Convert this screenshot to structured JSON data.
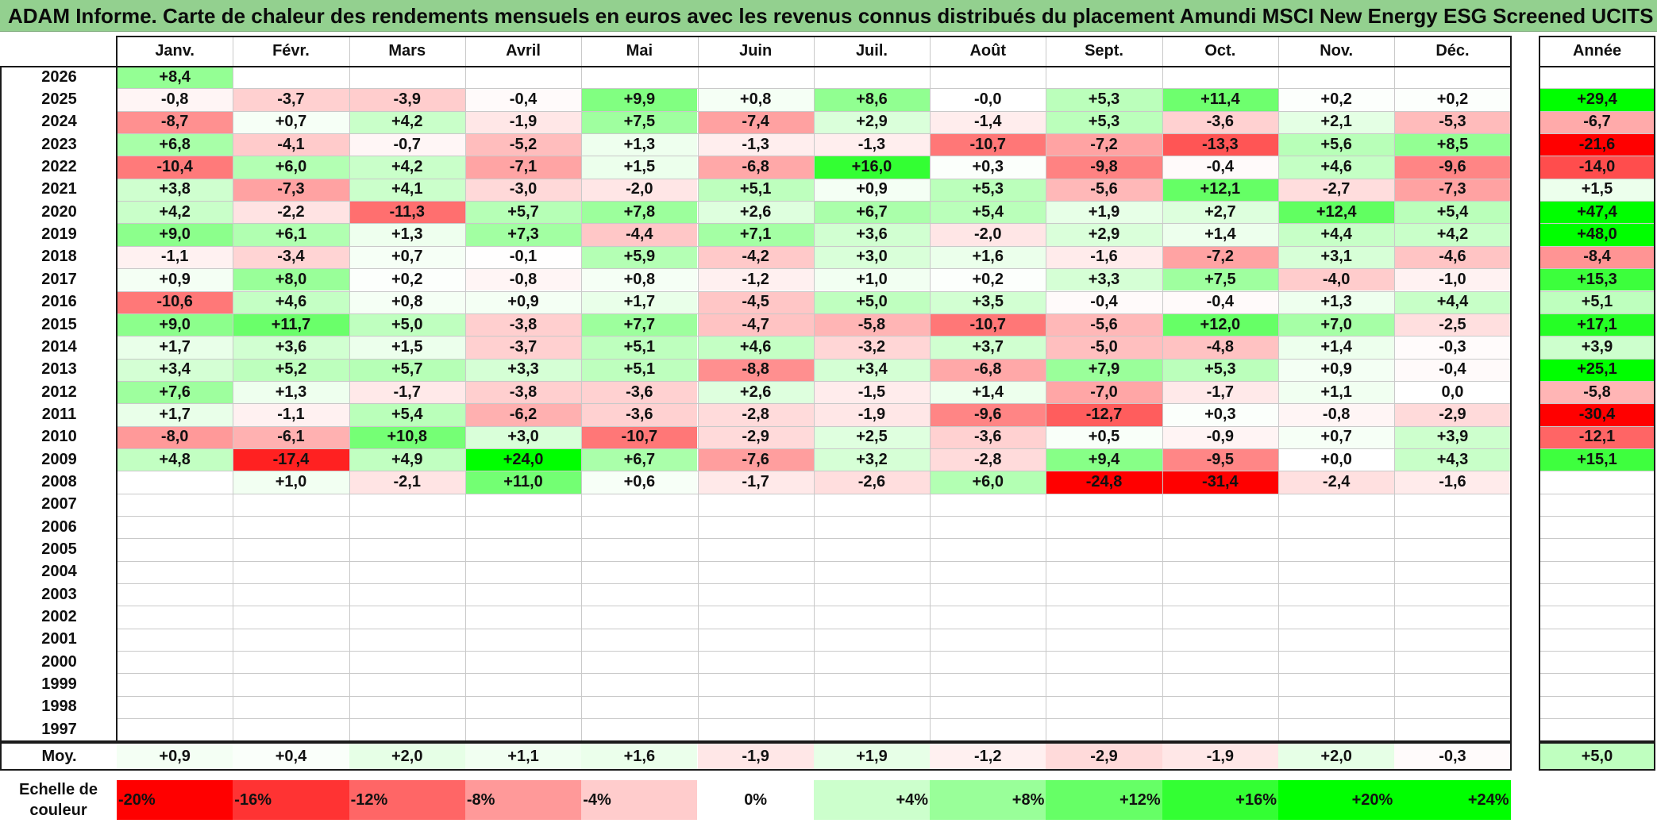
{
  "title": "ADAM Informe. Carte de chaleur des rendements mensuels en euros avec les revenus connus distribués du placement Amundi MSCI New Energy ESG Screened UCITS ETF Di",
  "chart_data": {
    "type": "heatmap",
    "columns": [
      "Janv.",
      "Févr.",
      "Mars",
      "Avril",
      "Mai",
      "Juin",
      "Juil.",
      "Août",
      "Sept.",
      "Oct.",
      "Nov.",
      "Déc."
    ],
    "year_header": "Année",
    "rows": [
      {
        "year": "2026",
        "months": [
          "+8,4",
          "",
          "",
          "",
          "",
          "",
          "",
          "",
          "",
          "",
          "",
          ""
        ],
        "annual": ""
      },
      {
        "year": "2025",
        "months": [
          "-0,8",
          "-3,7",
          "-3,9",
          "-0,4",
          "+9,9",
          "+0,8",
          "+8,6",
          "-0,0",
          "+5,3",
          "+11,4",
          "+0,2",
          "+0,2"
        ],
        "annual": "+29,4"
      },
      {
        "year": "2024",
        "months": [
          "-8,7",
          "+0,7",
          "+4,2",
          "-1,9",
          "+7,5",
          "-7,4",
          "+2,9",
          "-1,4",
          "+5,3",
          "-3,6",
          "+2,1",
          "-5,3"
        ],
        "annual": "-6,7"
      },
      {
        "year": "2023",
        "months": [
          "+6,8",
          "-4,1",
          "-0,7",
          "-5,2",
          "+1,3",
          "-1,3",
          "-1,3",
          "-10,7",
          "-7,2",
          "-13,3",
          "+5,6",
          "+8,5"
        ],
        "annual": "-21,6"
      },
      {
        "year": "2022",
        "months": [
          "-10,4",
          "+6,0",
          "+4,2",
          "-7,1",
          "+1,5",
          "-6,8",
          "+16,0",
          "+0,3",
          "-9,8",
          "-0,4",
          "+4,6",
          "-9,6"
        ],
        "annual": "-14,0"
      },
      {
        "year": "2021",
        "months": [
          "+3,8",
          "-7,3",
          "+4,1",
          "-3,0",
          "-2,0",
          "+5,1",
          "+0,9",
          "+5,3",
          "-5,6",
          "+12,1",
          "-2,7",
          "-7,3"
        ],
        "annual": "+1,5"
      },
      {
        "year": "2020",
        "months": [
          "+4,2",
          "-2,2",
          "-11,3",
          "+5,7",
          "+7,8",
          "+2,6",
          "+6,7",
          "+5,4",
          "+1,9",
          "+2,7",
          "+12,4",
          "+5,4"
        ],
        "annual": "+47,4"
      },
      {
        "year": "2019",
        "months": [
          "+9,0",
          "+6,1",
          "+1,3",
          "+7,3",
          "-4,4",
          "+7,1",
          "+3,6",
          "-2,0",
          "+2,9",
          "+1,4",
          "+4,4",
          "+4,2"
        ],
        "annual": "+48,0"
      },
      {
        "year": "2018",
        "months": [
          "-1,1",
          "-3,4",
          "+0,7",
          "-0,1",
          "+5,9",
          "-4,2",
          "+3,0",
          "+1,6",
          "-1,6",
          "-7,2",
          "+3,1",
          "-4,6"
        ],
        "annual": "-8,4"
      },
      {
        "year": "2017",
        "months": [
          "+0,9",
          "+8,0",
          "+0,2",
          "-0,8",
          "+0,8",
          "-1,2",
          "+1,0",
          "+0,2",
          "+3,3",
          "+7,5",
          "-4,0",
          "-1,0"
        ],
        "annual": "+15,3"
      },
      {
        "year": "2016",
        "months": [
          "-10,6",
          "+4,6",
          "+0,8",
          "+0,9",
          "+1,7",
          "-4,5",
          "+5,0",
          "+3,5",
          "-0,4",
          "-0,4",
          "+1,3",
          "+4,4"
        ],
        "annual": "+5,1"
      },
      {
        "year": "2015",
        "months": [
          "+9,0",
          "+11,7",
          "+5,0",
          "-3,8",
          "+7,7",
          "-4,7",
          "-5,8",
          "-10,7",
          "-5,6",
          "+12,0",
          "+7,0",
          "-2,5"
        ],
        "annual": "+17,1"
      },
      {
        "year": "2014",
        "months": [
          "+1,7",
          "+3,6",
          "+1,5",
          "-3,7",
          "+5,1",
          "+4,6",
          "-3,2",
          "+3,7",
          "-5,0",
          "-4,8",
          "+1,4",
          "-0,3"
        ],
        "annual": "+3,9"
      },
      {
        "year": "2013",
        "months": [
          "+3,4",
          "+5,2",
          "+5,7",
          "+3,3",
          "+5,1",
          "-8,8",
          "+3,4",
          "-6,8",
          "+7,9",
          "+5,3",
          "+0,9",
          "-0,4"
        ],
        "annual": "+25,1"
      },
      {
        "year": "2012",
        "months": [
          "+7,6",
          "+1,3",
          "-1,7",
          "-3,8",
          "-3,6",
          "+2,6",
          "-1,5",
          "+1,4",
          "-7,0",
          "-1,7",
          "+1,1",
          "0,0"
        ],
        "annual": "-5,8"
      },
      {
        "year": "2011",
        "months": [
          "+1,7",
          "-1,1",
          "+5,4",
          "-6,2",
          "-3,6",
          "-2,8",
          "-1,9",
          "-9,6",
          "-12,7",
          "+0,3",
          "-0,8",
          "-2,9"
        ],
        "annual": "-30,4"
      },
      {
        "year": "2010",
        "months": [
          "-8,0",
          "-6,1",
          "+10,8",
          "+3,0",
          "-10,7",
          "-2,9",
          "+2,5",
          "-3,6",
          "+0,5",
          "-0,9",
          "+0,7",
          "+3,9"
        ],
        "annual": "-12,1"
      },
      {
        "year": "2009",
        "months": [
          "+4,8",
          "-17,4",
          "+4,9",
          "+24,0",
          "+6,7",
          "-7,6",
          "+3,2",
          "-2,8",
          "+9,4",
          "-9,5",
          "+0,0",
          "+4,3"
        ],
        "annual": "+15,1"
      },
      {
        "year": "2008",
        "months": [
          "",
          "+1,0",
          "-2,1",
          "+11,0",
          "+0,6",
          "-1,7",
          "-2,6",
          "+6,0",
          "-24,8",
          "-31,4",
          "-2,4",
          "-1,6"
        ],
        "annual": ""
      },
      {
        "year": "2007",
        "months": [
          "",
          "",
          "",
          "",
          "",
          "",
          "",
          "",
          "",
          "",
          "",
          ""
        ],
        "annual": ""
      },
      {
        "year": "2006",
        "months": [
          "",
          "",
          "",
          "",
          "",
          "",
          "",
          "",
          "",
          "",
          "",
          ""
        ],
        "annual": ""
      },
      {
        "year": "2005",
        "months": [
          "",
          "",
          "",
          "",
          "",
          "",
          "",
          "",
          "",
          "",
          "",
          ""
        ],
        "annual": ""
      },
      {
        "year": "2004",
        "months": [
          "",
          "",
          "",
          "",
          "",
          "",
          "",
          "",
          "",
          "",
          "",
          ""
        ],
        "annual": ""
      },
      {
        "year": "2003",
        "months": [
          "",
          "",
          "",
          "",
          "",
          "",
          "",
          "",
          "",
          "",
          "",
          ""
        ],
        "annual": ""
      },
      {
        "year": "2002",
        "months": [
          "",
          "",
          "",
          "",
          "",
          "",
          "",
          "",
          "",
          "",
          "",
          ""
        ],
        "annual": ""
      },
      {
        "year": "2001",
        "months": [
          "",
          "",
          "",
          "",
          "",
          "",
          "",
          "",
          "",
          "",
          "",
          ""
        ],
        "annual": ""
      },
      {
        "year": "2000",
        "months": [
          "",
          "",
          "",
          "",
          "",
          "",
          "",
          "",
          "",
          "",
          "",
          ""
        ],
        "annual": ""
      },
      {
        "year": "1999",
        "months": [
          "",
          "",
          "",
          "",
          "",
          "",
          "",
          "",
          "",
          "",
          "",
          ""
        ],
        "annual": ""
      },
      {
        "year": "1998",
        "months": [
          "",
          "",
          "",
          "",
          "",
          "",
          "",
          "",
          "",
          "",
          "",
          ""
        ],
        "annual": ""
      },
      {
        "year": "1997",
        "months": [
          "",
          "",
          "",
          "",
          "",
          "",
          "",
          "",
          "",
          "",
          "",
          ""
        ],
        "annual": ""
      }
    ],
    "average": {
      "label": "Moy.",
      "months": [
        "+0,9",
        "+0,4",
        "+2,0",
        "+1,1",
        "+1,6",
        "-1,9",
        "+1,9",
        "-1,2",
        "-2,9",
        "-1,9",
        "+2,0",
        "-0,3"
      ],
      "annual": "+5,0"
    },
    "color_scale": {
      "label": "Echelle de couleur",
      "stops": [
        {
          "label": "-20%",
          "value": -20,
          "color": "#ff0000"
        },
        {
          "label": "-16%",
          "value": -16,
          "color": "#ff3333"
        },
        {
          "label": "-12%",
          "value": -12,
          "color": "#ff6666"
        },
        {
          "label": "-8%",
          "value": -8,
          "color": "#ff9999"
        },
        {
          "label": "-4%",
          "value": -4,
          "color": "#ffcccc"
        },
        {
          "label": "0%",
          "value": 0,
          "color": "#ffffff"
        },
        {
          "label": "+4%",
          "value": 4,
          "color": "#ccffcc"
        },
        {
          "label": "+8%",
          "value": 8,
          "color": "#99ff99"
        },
        {
          "label": "+12%",
          "value": 12,
          "color": "#66ff66"
        },
        {
          "label": "+16%",
          "value": 16,
          "color": "#33ff33"
        },
        {
          "label": "+20%",
          "value": 20,
          "color": "#00ff00"
        },
        {
          "label": "+24%",
          "value": 24,
          "color": "#00ff00"
        }
      ]
    }
  }
}
